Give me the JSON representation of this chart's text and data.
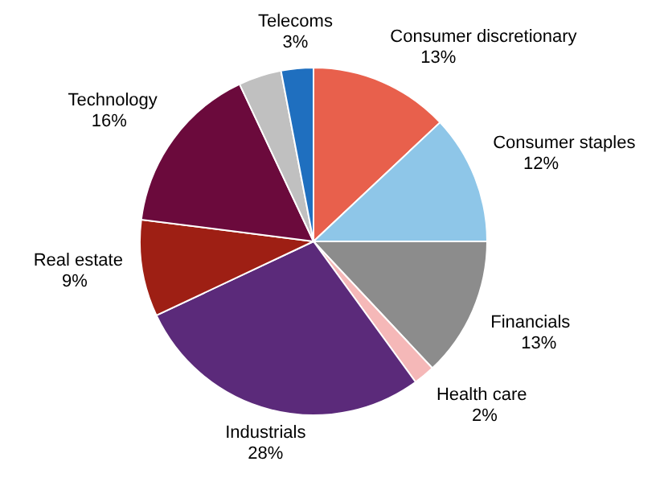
{
  "chart_data": {
    "type": "pie",
    "categories": [
      "Consumer discretionary",
      "Consumer staples",
      "Financials",
      "Health care",
      "Industrials",
      "Real estate",
      "Technology",
      null,
      "Telecoms"
    ],
    "values": [
      13,
      12,
      13,
      2,
      28,
      9,
      16,
      4,
      3
    ],
    "value_labels": [
      "13%",
      "12%",
      "13%",
      "2%",
      "28%",
      "9%",
      "16%",
      null,
      "3%"
    ],
    "colors": [
      "#e8604c",
      "#8ec6e8",
      "#8c8c8c",
      "#f5b8b8",
      "#5b2a7a",
      "#9e1f14",
      "#6b0a3c",
      "#c0c0c0",
      "#1f6fbf"
    ]
  }
}
